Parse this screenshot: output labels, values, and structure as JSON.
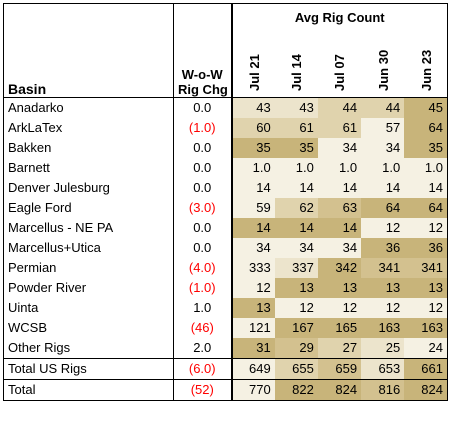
{
  "colors": {
    "scale_1": "#f5f1e3",
    "scale_2": "#ece4cc",
    "scale_3": "#e0d3ad",
    "scale_4": "#d3c18f",
    "scale_5": "#c8b47a",
    "negative_text": "#ff0000"
  },
  "header": {
    "basin": "Basin",
    "chg_line1": "W-o-W",
    "chg_line2": "Rig Chg",
    "group": "Avg Rig Count",
    "dates": [
      "Jul 21",
      "Jul 14",
      "Jul 07",
      "Jun 30",
      "Jun 23"
    ]
  },
  "rows": [
    {
      "basin": "Anadarko",
      "chg": "0.0",
      "neg": false,
      "values": [
        "43",
        "43",
        "44",
        "44",
        "45"
      ],
      "shade": [
        2,
        2,
        3,
        3,
        5
      ]
    },
    {
      "basin": "ArkLaTex",
      "chg": "(1.0)",
      "neg": true,
      "values": [
        "60",
        "61",
        "61",
        "57",
        "64"
      ],
      "shade": [
        3,
        3,
        3,
        1,
        5
      ]
    },
    {
      "basin": "Bakken",
      "chg": "0.0",
      "neg": false,
      "values": [
        "35",
        "35",
        "34",
        "34",
        "35"
      ],
      "shade": [
        5,
        5,
        1,
        1,
        5
      ]
    },
    {
      "basin": "Barnett",
      "chg": "0.0",
      "neg": false,
      "values": [
        "1.0",
        "1.0",
        "1.0",
        "1.0",
        "1.0"
      ],
      "shade": [
        1,
        1,
        1,
        1,
        1
      ]
    },
    {
      "basin": "Denver Julesburg",
      "chg": "0.0",
      "neg": false,
      "values": [
        "14",
        "14",
        "14",
        "14",
        "14"
      ],
      "shade": [
        1,
        1,
        1,
        1,
        1
      ]
    },
    {
      "basin": "Eagle Ford",
      "chg": "(3.0)",
      "neg": true,
      "values": [
        "59",
        "62",
        "63",
        "64",
        "64"
      ],
      "shade": [
        1,
        3,
        4,
        5,
        5
      ]
    },
    {
      "basin": "Marcellus - NE PA",
      "chg": "0.0",
      "neg": false,
      "values": [
        "14",
        "14",
        "14",
        "12",
        "12"
      ],
      "shade": [
        5,
        5,
        5,
        1,
        1
      ]
    },
    {
      "basin": "Marcellus+Utica",
      "chg": "0.0",
      "neg": false,
      "values": [
        "34",
        "34",
        "34",
        "36",
        "36"
      ],
      "shade": [
        1,
        1,
        1,
        5,
        5
      ]
    },
    {
      "basin": "Permian",
      "chg": "(4.0)",
      "neg": true,
      "values": [
        "333",
        "337",
        "342",
        "341",
        "341"
      ],
      "shade": [
        1,
        2,
        5,
        4,
        4
      ]
    },
    {
      "basin": "Powder River",
      "chg": "(1.0)",
      "neg": true,
      "values": [
        "12",
        "13",
        "13",
        "13",
        "13"
      ],
      "shade": [
        1,
        5,
        5,
        5,
        5
      ]
    },
    {
      "basin": "Uinta",
      "chg": "1.0",
      "neg": false,
      "values": [
        "13",
        "12",
        "12",
        "12",
        "12"
      ],
      "shade": [
        5,
        1,
        1,
        1,
        1
      ]
    },
    {
      "basin": "WCSB",
      "chg": "(46)",
      "neg": true,
      "values": [
        "121",
        "167",
        "165",
        "163",
        "163"
      ],
      "shade": [
        1,
        5,
        5,
        5,
        5
      ]
    },
    {
      "basin": "Other Rigs",
      "chg": "2.0",
      "neg": false,
      "values": [
        "31",
        "29",
        "27",
        "25",
        "24"
      ],
      "shade": [
        5,
        4,
        3,
        2,
        1
      ]
    }
  ],
  "total_us": {
    "basin": "Total US Rigs",
    "chg": "(6.0)",
    "neg": true,
    "values": [
      "649",
      "655",
      "659",
      "653",
      "661"
    ],
    "shade": [
      1,
      3,
      4,
      2,
      5
    ]
  },
  "total": {
    "basin": "Total",
    "chg": "(52)",
    "neg": true,
    "values": [
      "770",
      "822",
      "824",
      "816",
      "824"
    ],
    "shade": [
      1,
      5,
      5,
      4,
      5
    ]
  }
}
